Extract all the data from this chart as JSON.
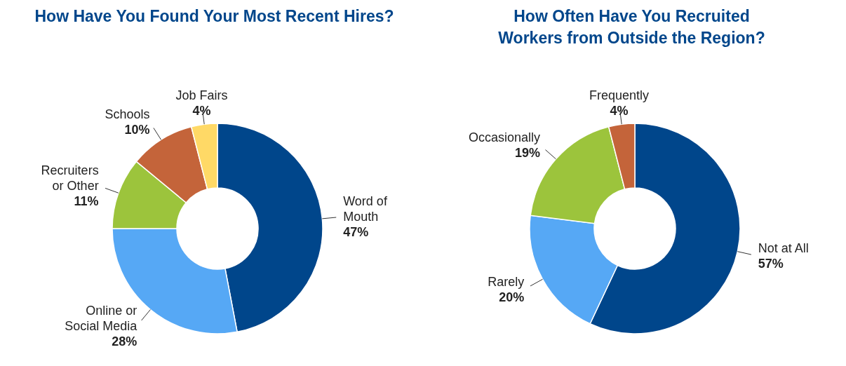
{
  "chart_data": [
    {
      "type": "donut",
      "title": "How Have You Found Your Most Recent Hires?",
      "categories": [
        "Word of Mouth",
        "Online or Social Media",
        "Recruiters or Other",
        "Schools",
        "Job Fairs"
      ],
      "values": [
        47,
        28,
        11,
        10,
        4
      ],
      "value_labels": [
        "47%",
        "28%",
        "11%",
        "10%",
        "4%"
      ],
      "colors": [
        "#00468b",
        "#56a8f5",
        "#9cc43c",
        "#c4643a",
        "#ffd966"
      ]
    },
    {
      "type": "donut",
      "title": "How Often Have You Recruited Workers from Outside the Region?",
      "categories": [
        "Not at All",
        "Rarely",
        "Occasionally",
        "Frequently"
      ],
      "values": [
        57,
        20,
        19,
        4
      ],
      "value_labels": [
        "57%",
        "20%",
        "19%",
        "4%"
      ],
      "colors": [
        "#00468b",
        "#56a8f5",
        "#9cc43c",
        "#c4643a"
      ]
    }
  ]
}
